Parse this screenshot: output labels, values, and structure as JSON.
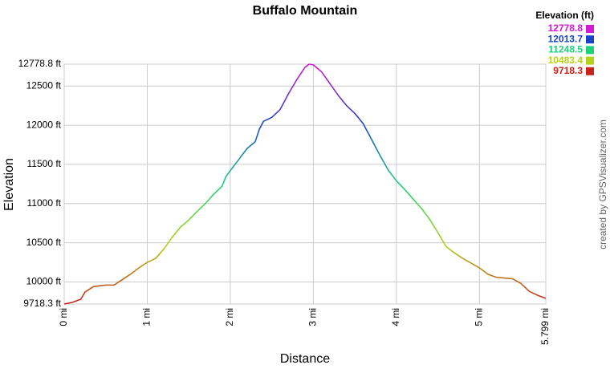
{
  "chart_data": {
    "type": "line",
    "title": "Buffalo Mountain",
    "x_label": "Distance",
    "y_label": "Elevation",
    "credit": "created by GPSVisualizer.com",
    "legend_title": "Elevation (ft)",
    "color_scale": [
      {
        "value": 12778.8,
        "color": "#d21ad2"
      },
      {
        "value": 12013.7,
        "color": "#1a44c8"
      },
      {
        "value": 11248.5,
        "color": "#1ed27a"
      },
      {
        "value": 10483.4,
        "color": "#b4d21a"
      },
      {
        "value": 9718.3,
        "color": "#c8221a"
      }
    ],
    "x": [
      0,
      0.1,
      0.2,
      0.25,
      0.35,
      0.5,
      0.6,
      0.7,
      0.8,
      0.9,
      1.0,
      1.1,
      1.2,
      1.3,
      1.4,
      1.5,
      1.6,
      1.7,
      1.8,
      1.9,
      1.95,
      2.0,
      2.1,
      2.2,
      2.3,
      2.35,
      2.4,
      2.5,
      2.6,
      2.7,
      2.8,
      2.9,
      2.95,
      3.0,
      3.1,
      3.2,
      3.3,
      3.4,
      3.5,
      3.6,
      3.7,
      3.8,
      3.9,
      4.0,
      4.1,
      4.2,
      4.3,
      4.4,
      4.5,
      4.6,
      4.7,
      4.8,
      4.9,
      5.0,
      5.1,
      5.2,
      5.3,
      5.4,
      5.5,
      5.6,
      5.7,
      5.799
    ],
    "series": [
      {
        "name": "Elevation",
        "values": [
          9718.3,
          9740,
          9780,
          9870,
          9940,
          9960,
          9960,
          10030,
          10100,
          10180,
          10250,
          10300,
          10420,
          10570,
          10700,
          10790,
          10900,
          11000,
          11120,
          11220,
          11350,
          11420,
          11560,
          11700,
          11790,
          11950,
          12050,
          12100,
          12200,
          12400,
          12580,
          12740,
          12778.8,
          12770,
          12680,
          12530,
          12380,
          12250,
          12150,
          12020,
          11820,
          11620,
          11430,
          11290,
          11180,
          11060,
          10940,
          10800,
          10630,
          10450,
          10370,
          10300,
          10240,
          10180,
          10100,
          10060,
          10050,
          10040,
          9980,
          9880,
          9830,
          9790
        ]
      }
    ],
    "xlim": [
      0,
      5.799
    ],
    "xticks": [
      {
        "value": 0,
        "label": "0 mi"
      },
      {
        "value": 1,
        "label": "1 mi"
      },
      {
        "value": 2,
        "label": "2 mi"
      },
      {
        "value": 3,
        "label": "3 mi"
      },
      {
        "value": 4,
        "label": "4 mi"
      },
      {
        "value": 5,
        "label": "5 mi"
      },
      {
        "value": 5.799,
        "label": "5.799 mi"
      }
    ],
    "ylim": [
      9718.3,
      12778.8
    ],
    "yticks": [
      {
        "value": 9718.3,
        "label": "9718.3 ft"
      },
      {
        "value": 10000,
        "label": "10000 ft"
      },
      {
        "value": 10500,
        "label": "10500 ft"
      },
      {
        "value": 11000,
        "label": "11000 ft"
      },
      {
        "value": 11500,
        "label": "11500 ft"
      },
      {
        "value": 12000,
        "label": "12000 ft"
      },
      {
        "value": 12500,
        "label": "12500 ft"
      },
      {
        "value": 12778.8,
        "label": "12778.8 ft"
      }
    ],
    "grid": true
  }
}
